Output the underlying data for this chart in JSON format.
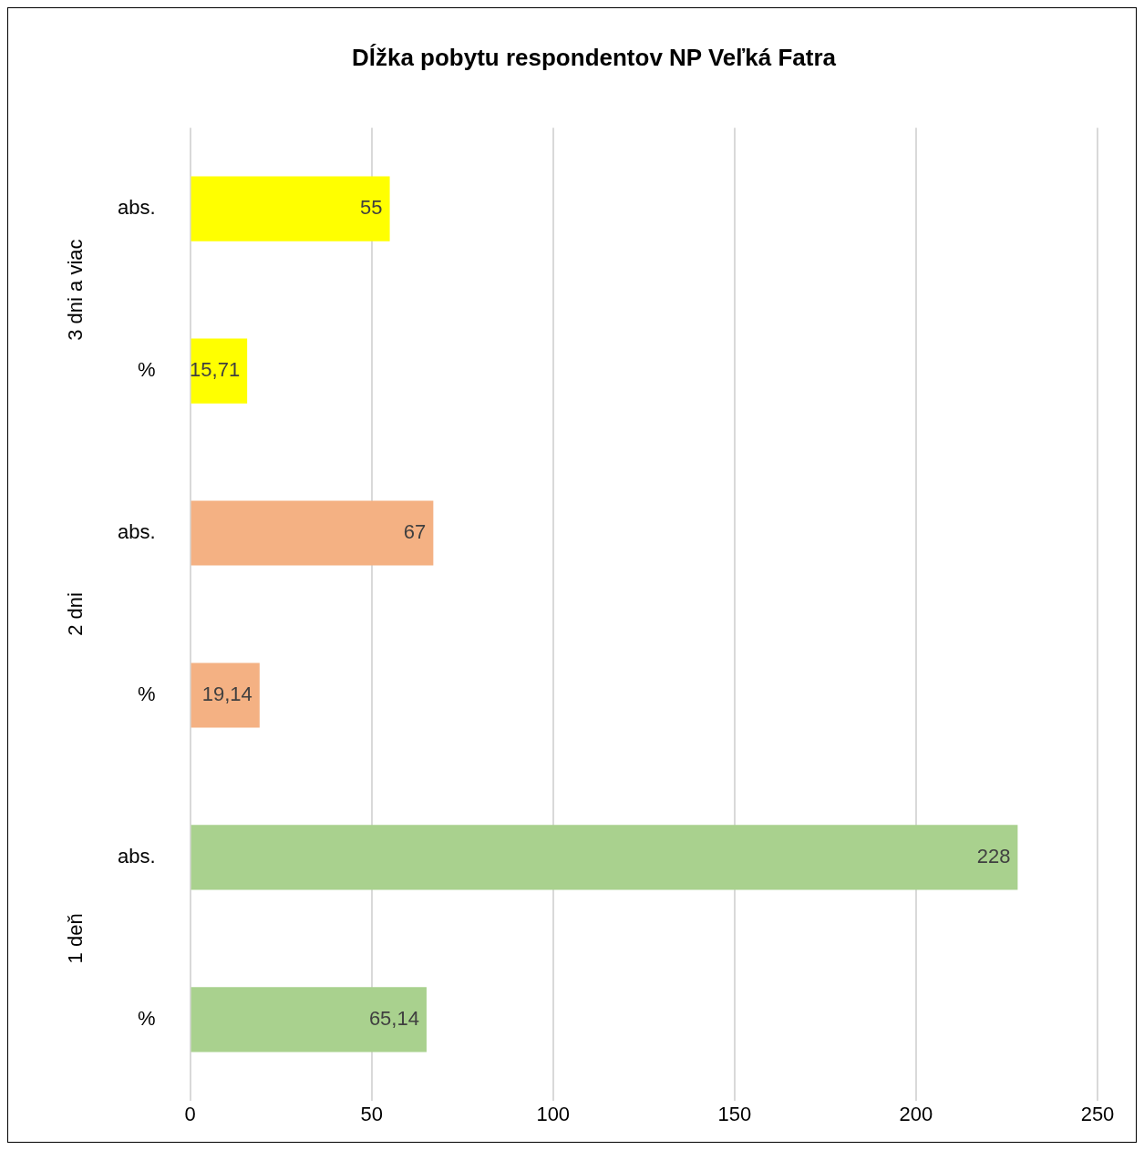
{
  "chart_data": {
    "type": "bar",
    "orientation": "horizontal",
    "title": "Dĺžka pobytu respondentov NP Veľká Fatra",
    "categories": [
      "abs.",
      "%",
      "abs.",
      "%",
      "abs.",
      "%"
    ],
    "values": [
      55,
      15.71,
      67,
      19.14,
      228,
      65.14
    ],
    "value_labels": [
      "55",
      "15,71",
      "67",
      "19,14",
      "228",
      "65,14"
    ],
    "colors": [
      "#ffff00",
      "#ffff00",
      "#f4b183",
      "#f4b183",
      "#a9d18e",
      "#a9d18e"
    ],
    "annotations": [
      "3 dni a viac",
      "2 dni",
      "1 deň"
    ],
    "xlim": [
      0,
      250
    ],
    "xticks": [
      0,
      50,
      100,
      150,
      200,
      250
    ],
    "grid": "x",
    "legend": false
  }
}
